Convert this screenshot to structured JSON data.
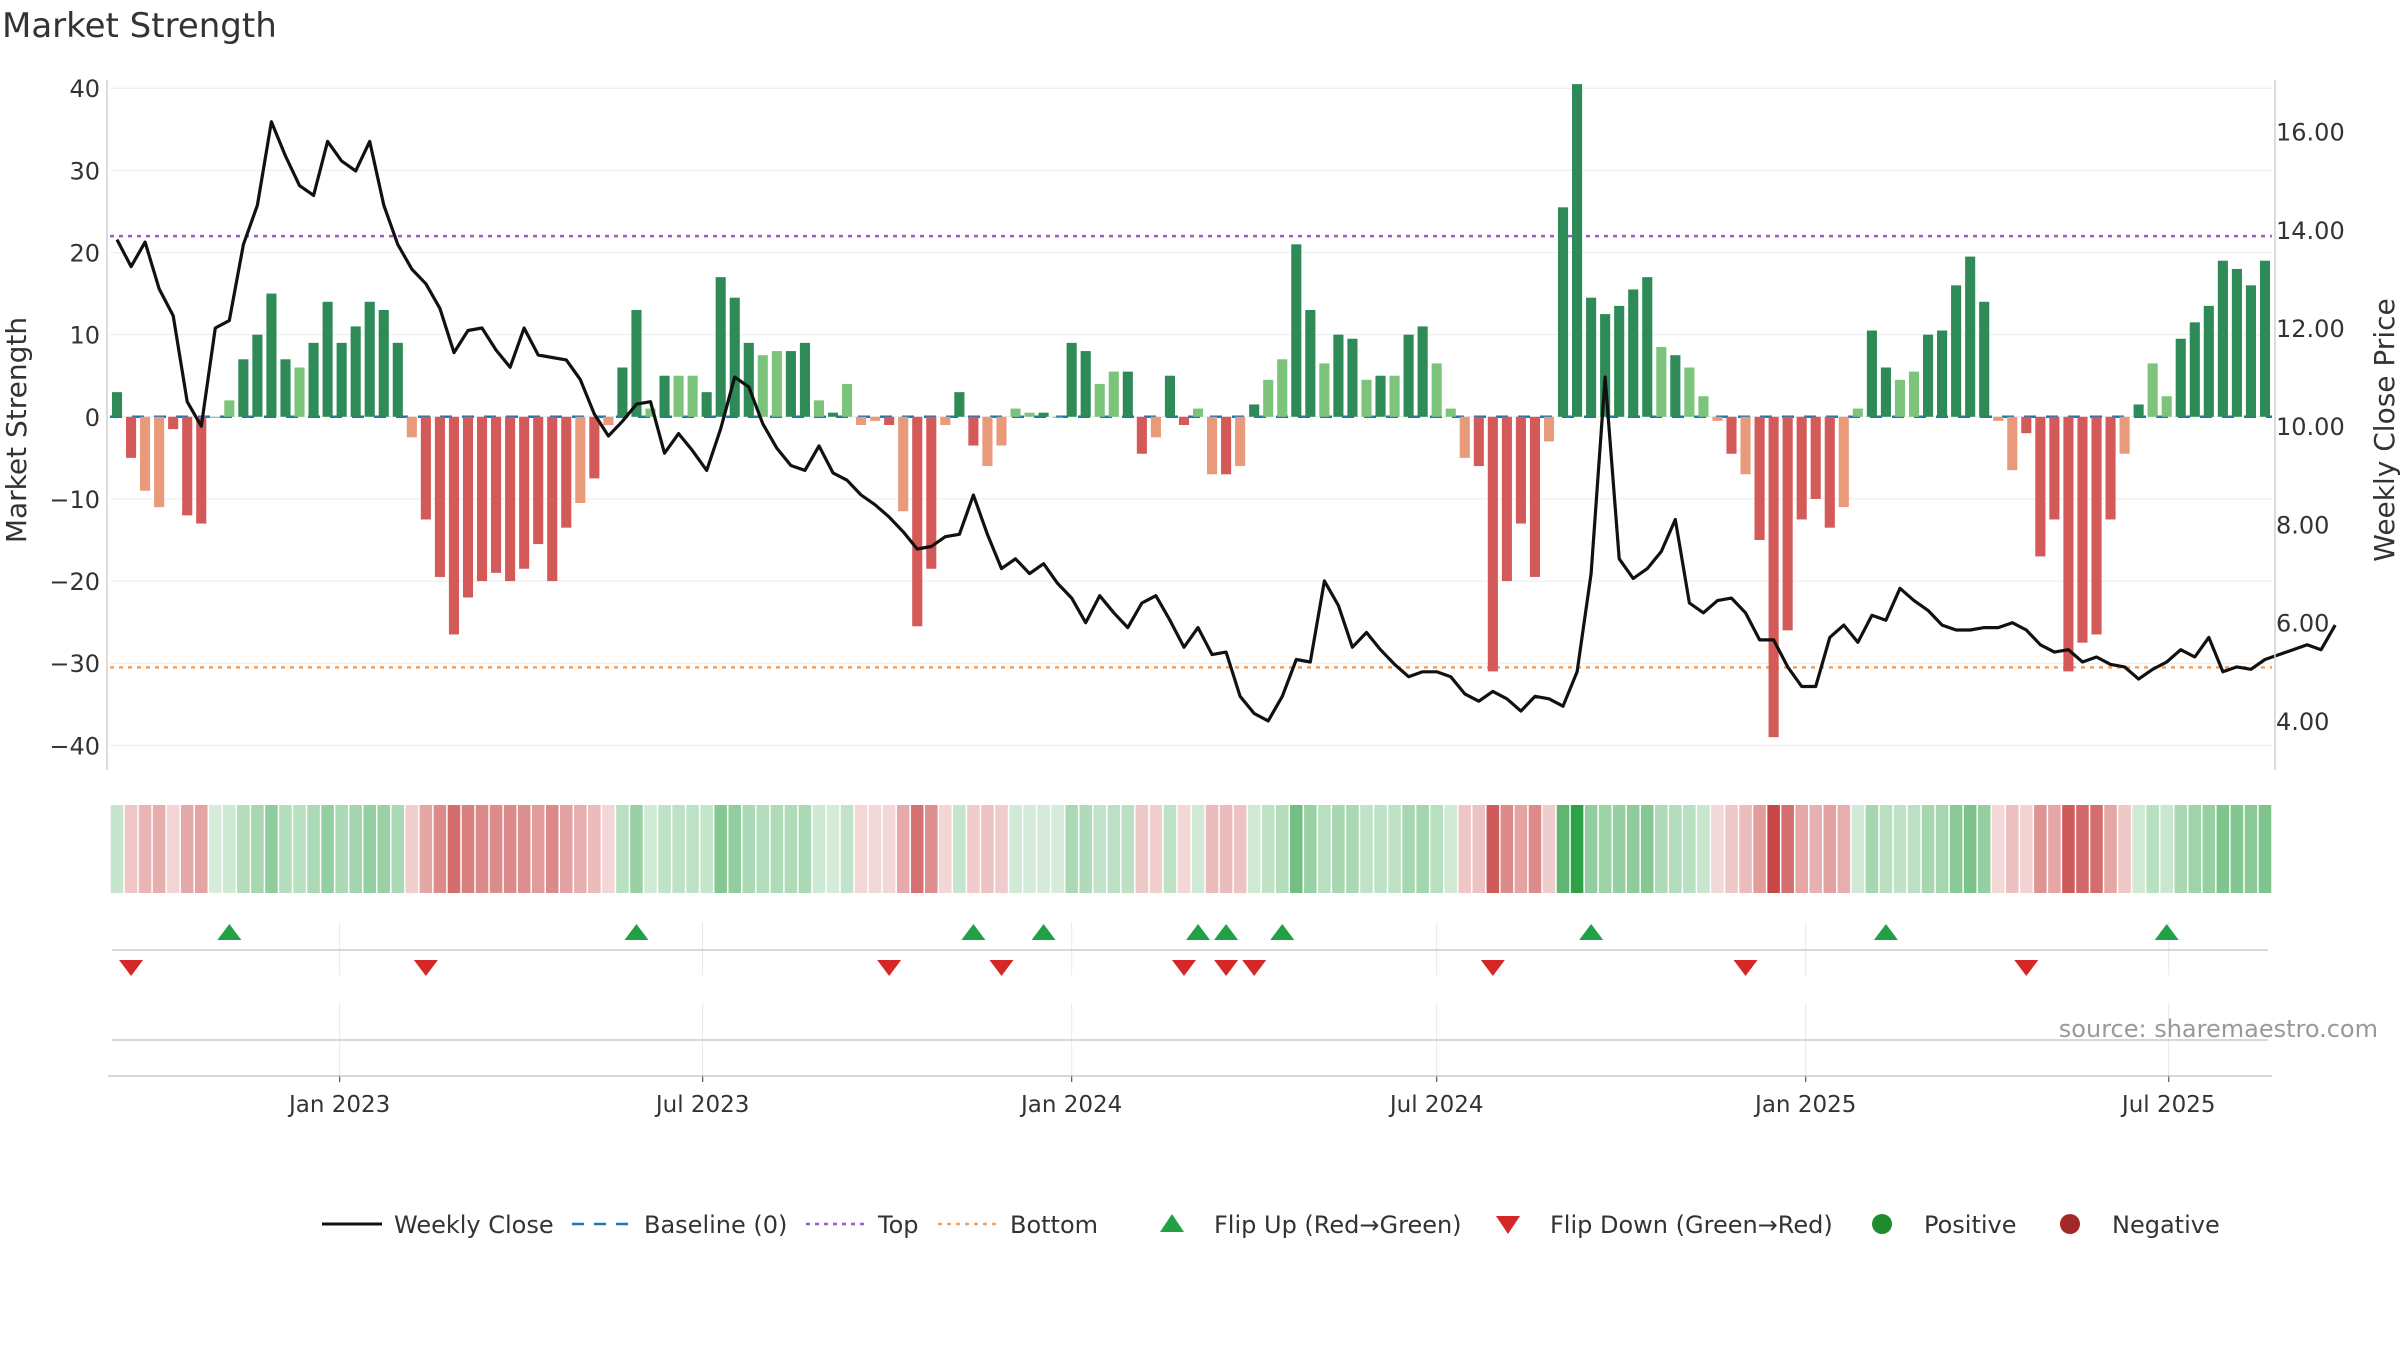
{
  "chart_data": {
    "type": "bar",
    "title": "Market Strength",
    "ylabel": "Market Strength",
    "y2label": "Weekly Close Price",
    "ylim": [
      -43,
      41
    ],
    "y2lim": [
      3.0,
      17.05
    ],
    "yticks": [
      "40",
      "30",
      "20",
      "10",
      "0",
      "−10",
      "−20",
      "−30",
      "−40"
    ],
    "y2ticks": [
      "16.00",
      "14.00",
      "12.00",
      "10.00",
      "8.00",
      "6.00",
      "4.00"
    ],
    "top_line": 22,
    "bottom_line": -30.5,
    "baseline": 0,
    "start_date": "2022-09-12",
    "xticks": [
      {
        "label": "Jan 2023",
        "date": "2023-01-01"
      },
      {
        "label": "Jul 2023",
        "date": "2023-07-01"
      },
      {
        "label": "Jan 2024",
        "date": "2024-01-01"
      },
      {
        "label": "Jul 2024",
        "date": "2024-07-01"
      },
      {
        "label": "Jan 2025",
        "date": "2025-01-01"
      },
      {
        "label": "Jul 2025",
        "date": "2025-07-01"
      }
    ],
    "strength": [
      3,
      -5,
      -9,
      -11,
      -1.5,
      -12,
      -13,
      0,
      2,
      7,
      10,
      15,
      7,
      6,
      9,
      14,
      9,
      11,
      14,
      13,
      9,
      -2.5,
      -12.5,
      -19.5,
      -26.5,
      -22,
      -20,
      -19,
      -20,
      -18.5,
      -15.5,
      -20,
      -13.5,
      -10.5,
      -7.5,
      -1,
      6,
      13,
      1,
      5,
      5,
      5,
      3,
      17,
      14.5,
      9,
      7.5,
      8,
      8,
      9,
      2,
      0.5,
      4,
      -1,
      -0.5,
      -1,
      -11.5,
      -25.5,
      -18.5,
      -1,
      3,
      -3.5,
      -6,
      -3.5,
      1,
      0.5,
      0.5,
      0,
      9,
      8,
      4,
      5.5,
      5.5,
      -4.5,
      -2.5,
      5,
      -1,
      1,
      -7,
      -7,
      -6,
      1.5,
      4.5,
      7,
      21,
      13,
      6.5,
      10,
      9.5,
      4.5,
      5,
      5,
      10,
      11,
      6.5,
      1,
      -5,
      -6,
      -31,
      -20,
      -13,
      -19.5,
      -3,
      25.5,
      40.5,
      14.5,
      12.5,
      13.5,
      15.5,
      17,
      8.5,
      7.5,
      6,
      2.5,
      -0.5,
      -4.5,
      -7,
      -15,
      -39,
      -26,
      -12.5,
      -10,
      -13.5,
      -11,
      1,
      10.5,
      6,
      4.5,
      5.5,
      10,
      10.5,
      16,
      19.5,
      14,
      -0.5,
      -6.5,
      -2,
      -17,
      -12.5,
      -31,
      -27.5,
      -26.5,
      -12.5,
      -4.5,
      1.5,
      6.5,
      2.5,
      9.5,
      11.5,
      13.5,
      19,
      18,
      16,
      19
    ],
    "close": [
      13.8,
      13.25,
      13.75,
      12.8,
      12.25,
      10.5,
      10.0,
      12.0,
      12.15,
      13.7,
      14.5,
      16.2,
      15.5,
      14.9,
      14.7,
      15.8,
      15.4,
      15.2,
      15.8,
      14.5,
      13.7,
      13.2,
      12.9,
      12.4,
      11.5,
      11.95,
      12.0,
      11.55,
      11.2,
      12.0,
      11.45,
      11.4,
      11.35,
      10.95,
      10.25,
      9.8,
      10.1,
      10.45,
      10.5,
      9.45,
      9.85,
      9.5,
      9.1,
      9.95,
      11.0,
      10.8,
      10.05,
      9.55,
      9.2,
      9.1,
      9.6,
      9.05,
      8.9,
      8.6,
      8.4,
      8.15,
      7.85,
      7.5,
      7.55,
      7.75,
      7.8,
      8.6,
      7.8,
      7.1,
      7.3,
      7.0,
      7.2,
      6.8,
      6.5,
      6.0,
      6.55,
      6.2,
      5.9,
      6.4,
      6.55,
      6.05,
      5.5,
      5.9,
      5.35,
      5.4,
      4.5,
      4.15,
      4.0,
      4.5,
      5.25,
      5.2,
      6.85,
      6.35,
      5.5,
      5.8,
      5.45,
      5.15,
      4.9,
      5.0,
      5.0,
      4.9,
      4.55,
      4.4,
      4.6,
      4.45,
      4.2,
      4.5,
      4.45,
      4.3,
      5.0,
      7.0,
      11.0,
      7.3,
      6.9,
      7.1,
      7.45,
      8.1,
      6.4,
      6.2,
      6.45,
      6.5,
      6.2,
      5.65,
      5.65,
      5.1,
      4.7,
      4.7,
      5.7,
      5.95,
      5.6,
      6.15,
      6.05,
      6.7,
      6.45,
      6.25,
      5.95,
      5.85,
      5.85,
      5.9,
      5.9,
      6.0,
      5.85,
      5.55,
      5.4,
      5.45,
      5.2,
      5.3,
      5.15,
      5.1,
      4.85,
      5.05,
      5.2,
      5.45,
      5.3,
      5.7,
      5.0,
      5.1,
      5.05,
      5.25,
      5.35,
      5.45,
      5.55,
      5.45,
      5.95
    ],
    "flips_up": [
      8,
      37,
      61,
      66,
      77,
      79,
      83,
      105,
      126,
      146
    ],
    "flips_down": [
      1,
      22,
      55,
      63,
      76,
      79,
      81,
      98,
      116,
      136
    ],
    "legend": [
      {
        "label": "Weekly Close",
        "icon": "solid-line",
        "color": "#111111"
      },
      {
        "label": "Baseline (0)",
        "icon": "dashed-line",
        "color": "#1f77b4"
      },
      {
        "label": "Top",
        "icon": "dotted-line",
        "color": "#9b59c9"
      },
      {
        "label": "Bottom",
        "icon": "dotted-line",
        "color": "#f0a060"
      },
      {
        "label": "Flip Up (Red→Green)",
        "icon": "up-triangle",
        "color": "#22a045"
      },
      {
        "label": "Flip Down (Green→Red)",
        "icon": "down-triangle",
        "color": "#d62728"
      },
      {
        "label": "Positive",
        "icon": "circle",
        "color": "#1f8a2e"
      },
      {
        "label": "Negative",
        "icon": "circle",
        "color": "#a52828"
      }
    ],
    "source": "source: sharemaestro.com",
    "colors": {
      "pos_strong": "#2e8b57",
      "pos_light": "#7cc47c",
      "neg_strong": "#d45a5a",
      "neg_light": "#e89a7a",
      "close_line": "#111111",
      "top_line": "#9b59c9",
      "bottom_line": "#f0a060",
      "baseline": "#1f77b4",
      "flip_up": "#22a045",
      "flip_down": "#d62728"
    }
  }
}
